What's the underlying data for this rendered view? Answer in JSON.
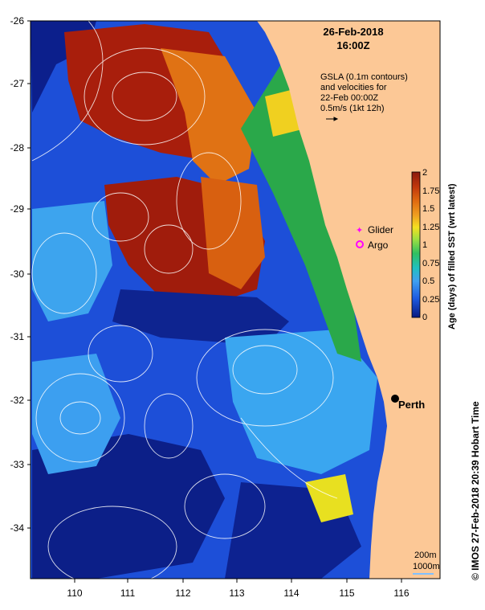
{
  "map": {
    "date": "26-Feb-2018",
    "time": "16:00Z",
    "gsla_lines": [
      "GSLA (0.1m contours)",
      "and velocities for",
      "22-Feb 00:00Z",
      "0.5m/s (1kt 12h)"
    ],
    "lat_labels": [
      "-26",
      "-27",
      "-28",
      "-29",
      "-30",
      "-31",
      "-32",
      "-33",
      "-34"
    ],
    "lon_labels": [
      "110",
      "111",
      "112",
      "113",
      "114",
      "115",
      "116"
    ],
    "city": "Perth",
    "legend": {
      "glider": "Glider",
      "argo": "Argo",
      "glider_color": "#ff00ff",
      "argo_color": "#ff00ff"
    },
    "colorbar": {
      "title": "Age (days) of filled SST (wrt latest)",
      "ticks": [
        "2",
        "1.75",
        "1.5",
        "1.25",
        "1",
        "0.75",
        "0.5",
        "0.25",
        "0"
      ],
      "colors": [
        "#8b1a0e",
        "#c0360c",
        "#e06a10",
        "#f0a020",
        "#f5e020",
        "#a0e040",
        "#30c060",
        "#20c0c0",
        "#40a0f0",
        "#1e5ae0",
        "#0a1a80"
      ]
    },
    "isobaths": [
      "200m",
      "1000m"
    ],
    "credit": "© IMOS 27-Feb-2018 20:39 Hobart Time",
    "land_color": "#fcc896"
  }
}
